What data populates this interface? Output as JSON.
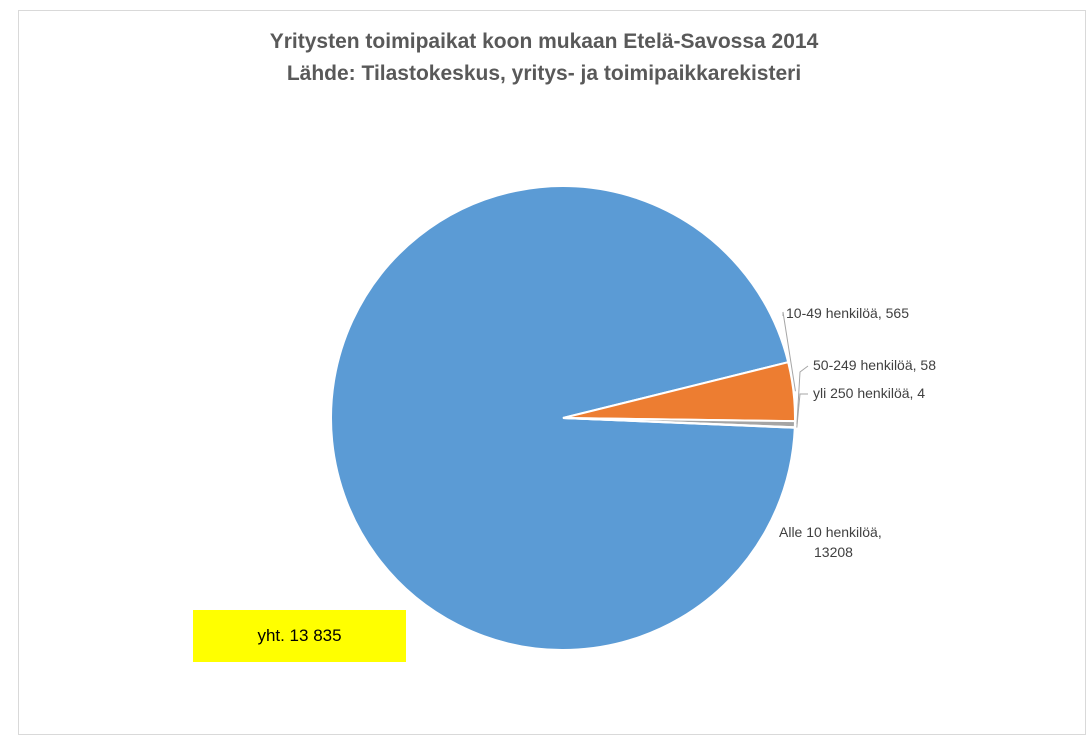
{
  "chart_data": {
    "type": "pie",
    "title": "Yritysten toimipaikat koon mukaan Etelä-Savossa 2014",
    "subtitle": "Lähde: Tilastokeskus, yritys- ja toimipaikkarekisteri",
    "slices": [
      {
        "name": "Alle 10 henkilöä",
        "value": 13208,
        "color": "#5b9bd5"
      },
      {
        "name": "10-49 henkilöä",
        "value": 565,
        "color": "#ed7d31"
      },
      {
        "name": "50-249 henkilöä",
        "value": 58,
        "color": "#a5a5a5"
      },
      {
        "name": "yli 250 henkilöä",
        "value": 4,
        "color": "#ffc000"
      }
    ],
    "labels": [
      {
        "line1": "Alle 10 henkilöä,",
        "line2": "13208"
      },
      {
        "line1": "10-49 henkilöä, 565"
      },
      {
        "line1": "50-249 henkilöä, 58"
      },
      {
        "line1": "yli 250 henkilöä, 4"
      }
    ],
    "annotation": "yht. 13 835"
  }
}
